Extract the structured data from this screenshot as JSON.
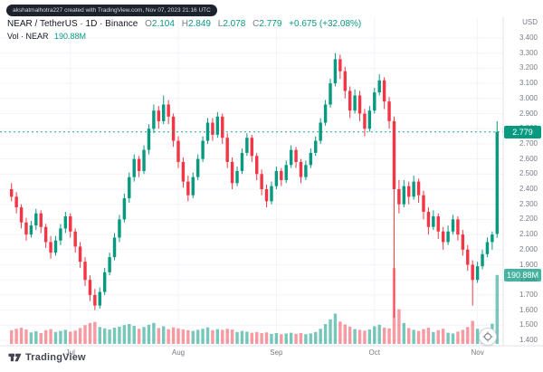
{
  "attribution": "akshatmalhotra227 created with TradingView.com, Nov 07, 2023 21:16 UTC",
  "header": {
    "title": "NEAR / TetherUS · 1D · Binance",
    "ohlc": {
      "o": {
        "label": "O",
        "value": "2.104"
      },
      "h": {
        "label": "H",
        "value": "2.849"
      },
      "l": {
        "label": "L",
        "value": "2.078"
      },
      "c": {
        "label": "C",
        "value": "2.779"
      },
      "change": "+0.675 (+32.08%)"
    },
    "volume_label": "Vol · NEAR",
    "volume_value": "190.88M"
  },
  "price_axis": {
    "currency": "USD",
    "labels": [
      "3.400",
      "3.300",
      "3.200",
      "3.100",
      "3.000",
      "2.900",
      "2.800",
      "2.700",
      "2.600",
      "2.500",
      "2.400",
      "2.300",
      "2.200",
      "2.100",
      "2.000",
      "1.900",
      "1.800",
      "1.700",
      "1.600",
      "1.500",
      "1.400"
    ]
  },
  "time_axis": {
    "labels": [
      {
        "text": "Jul",
        "candle_index": 12
      },
      {
        "text": "Aug",
        "candle_index": 34
      },
      {
        "text": "Sep",
        "candle_index": 54
      },
      {
        "text": "Oct",
        "candle_index": 74
      },
      {
        "text": "Nov",
        "candle_index": 95
      }
    ]
  },
  "badges": {
    "last_price": "2.779",
    "volume": "190.88M"
  },
  "footer": {
    "logo_text": "TradingView"
  },
  "colors": {
    "up": "#089981",
    "down": "#f23645",
    "volume_up": "rgba(8,153,129,0.55)",
    "volume_down": "rgba(242,54,69,0.5)",
    "grid": "#f0f3fa",
    "axis_border": "#e0e3eb",
    "axis_text": "#787b86",
    "price_badge_bg": "#089981",
    "volume_badge_bg": "rgba(8,153,129,0.75)"
  },
  "chart_data": {
    "type": "candlestick",
    "title": "NEAR / TetherUS 1D Binance",
    "symbol": "NEAR/USDT",
    "timeframe": "1D",
    "x_range": "Jul 2023 - Nov 07 2023",
    "ylim": [
      1.4,
      3.45
    ],
    "y_ticks": [
      3.4,
      3.3,
      3.2,
      3.1,
      3.0,
      2.9,
      2.8,
      2.7,
      2.6,
      2.5,
      2.4,
      2.3,
      2.2,
      2.1,
      2.0,
      1.9,
      1.8,
      1.7,
      1.6,
      1.5,
      1.4
    ],
    "last_price": 2.779,
    "last_volume_m": 190.88,
    "grid": true,
    "legend_position": "top-left",
    "series_note": "candles are [open, high, low, close, volume_millions]",
    "candles": [
      [
        2.4,
        2.44,
        2.32,
        2.35,
        38
      ],
      [
        2.35,
        2.38,
        2.24,
        2.28,
        42
      ],
      [
        2.28,
        2.3,
        2.14,
        2.18,
        45
      ],
      [
        2.18,
        2.21,
        2.06,
        2.1,
        40
      ],
      [
        2.1,
        2.19,
        2.08,
        2.16,
        32
      ],
      [
        2.16,
        2.27,
        2.13,
        2.24,
        35
      ],
      [
        2.24,
        2.26,
        2.11,
        2.15,
        30
      ],
      [
        2.15,
        2.17,
        2.01,
        2.05,
        38
      ],
      [
        2.05,
        2.09,
        1.94,
        1.98,
        41
      ],
      [
        1.98,
        2.09,
        1.96,
        2.06,
        33
      ],
      [
        2.06,
        2.17,
        2.03,
        2.14,
        36
      ],
      [
        2.14,
        2.25,
        2.11,
        2.22,
        39
      ],
      [
        2.22,
        2.24,
        2.08,
        2.12,
        34
      ],
      [
        2.12,
        2.14,
        1.98,
        2.02,
        37
      ],
      [
        2.02,
        2.05,
        1.88,
        1.92,
        44
      ],
      [
        1.92,
        1.95,
        1.76,
        1.8,
        52
      ],
      [
        1.8,
        1.83,
        1.66,
        1.7,
        58
      ],
      [
        1.7,
        1.74,
        1.6,
        1.63,
        61
      ],
      [
        1.63,
        1.75,
        1.61,
        1.72,
        47
      ],
      [
        1.72,
        1.88,
        1.7,
        1.85,
        43
      ],
      [
        1.85,
        1.98,
        1.83,
        1.95,
        40
      ],
      [
        1.95,
        2.11,
        1.93,
        2.08,
        45
      ],
      [
        2.08,
        2.23,
        2.05,
        2.2,
        48
      ],
      [
        2.2,
        2.37,
        2.18,
        2.34,
        52
      ],
      [
        2.34,
        2.51,
        2.31,
        2.48,
        55
      ],
      [
        2.48,
        2.63,
        2.45,
        2.6,
        50
      ],
      [
        2.6,
        2.62,
        2.48,
        2.52,
        42
      ],
      [
        2.52,
        2.69,
        2.5,
        2.66,
        47
      ],
      [
        2.66,
        2.83,
        2.63,
        2.8,
        53
      ],
      [
        2.8,
        2.96,
        2.77,
        2.92,
        58
      ],
      [
        2.92,
        2.95,
        2.8,
        2.85,
        44
      ],
      [
        2.85,
        3.02,
        2.83,
        2.96,
        49
      ],
      [
        2.96,
        2.99,
        2.83,
        2.88,
        41
      ],
      [
        2.88,
        2.9,
        2.68,
        2.72,
        46
      ],
      [
        2.72,
        2.75,
        2.54,
        2.58,
        43
      ],
      [
        2.58,
        2.61,
        2.41,
        2.45,
        40
      ],
      [
        2.45,
        2.49,
        2.32,
        2.36,
        38
      ],
      [
        2.36,
        2.51,
        2.34,
        2.48,
        36
      ],
      [
        2.48,
        2.63,
        2.46,
        2.6,
        39
      ],
      [
        2.6,
        2.75,
        2.58,
        2.72,
        42
      ],
      [
        2.72,
        2.87,
        2.7,
        2.84,
        46
      ],
      [
        2.84,
        2.87,
        2.72,
        2.76,
        38
      ],
      [
        2.76,
        2.91,
        2.74,
        2.88,
        41
      ],
      [
        2.88,
        2.9,
        2.7,
        2.74,
        39
      ],
      [
        2.74,
        2.77,
        2.54,
        2.58,
        42
      ],
      [
        2.58,
        2.61,
        2.4,
        2.44,
        40
      ],
      [
        2.44,
        2.55,
        2.42,
        2.52,
        33
      ],
      [
        2.52,
        2.67,
        2.5,
        2.64,
        36
      ],
      [
        2.64,
        2.77,
        2.62,
        2.74,
        34
      ],
      [
        2.74,
        2.76,
        2.58,
        2.62,
        31
      ],
      [
        2.62,
        2.64,
        2.46,
        2.5,
        33
      ],
      [
        2.5,
        2.53,
        2.36,
        2.4,
        30
      ],
      [
        2.4,
        2.43,
        2.28,
        2.32,
        32
      ],
      [
        2.32,
        2.45,
        2.3,
        2.42,
        28
      ],
      [
        2.42,
        2.55,
        2.4,
        2.52,
        30
      ],
      [
        2.52,
        2.54,
        2.42,
        2.46,
        27
      ],
      [
        2.46,
        2.59,
        2.44,
        2.56,
        29
      ],
      [
        2.56,
        2.69,
        2.54,
        2.66,
        31
      ],
      [
        2.66,
        2.68,
        2.54,
        2.58,
        28
      ],
      [
        2.58,
        2.6,
        2.44,
        2.48,
        30
      ],
      [
        2.48,
        2.59,
        2.46,
        2.56,
        27
      ],
      [
        2.56,
        2.67,
        2.54,
        2.64,
        29
      ],
      [
        2.64,
        2.75,
        2.62,
        2.72,
        33
      ],
      [
        2.72,
        2.87,
        2.7,
        2.84,
        42
      ],
      [
        2.84,
        2.99,
        2.82,
        2.96,
        55
      ],
      [
        2.96,
        3.13,
        2.94,
        3.1,
        68
      ],
      [
        3.1,
        3.3,
        3.08,
        3.26,
        84
      ],
      [
        3.26,
        3.29,
        3.13,
        3.18,
        62
      ],
      [
        3.18,
        3.21,
        3.0,
        3.05,
        54
      ],
      [
        3.05,
        3.08,
        2.87,
        2.92,
        48
      ],
      [
        2.92,
        3.06,
        2.9,
        3.02,
        41
      ],
      [
        3.02,
        3.05,
        2.85,
        2.9,
        39
      ],
      [
        2.9,
        2.93,
        2.75,
        2.8,
        37
      ],
      [
        2.8,
        2.95,
        2.78,
        2.92,
        40
      ],
      [
        2.92,
        3.07,
        2.9,
        3.04,
        49
      ],
      [
        3.04,
        3.16,
        3.02,
        3.12,
        53
      ],
      [
        3.12,
        3.14,
        2.93,
        2.98,
        45
      ],
      [
        2.98,
        3.01,
        2.8,
        2.85,
        43
      ],
      [
        2.85,
        2.88,
        1.55,
        2.4,
        210
      ],
      [
        2.4,
        2.46,
        2.24,
        2.3,
        96
      ],
      [
        2.3,
        2.46,
        2.28,
        2.42,
        58
      ],
      [
        2.42,
        2.45,
        2.3,
        2.35,
        44
      ],
      [
        2.35,
        2.49,
        2.33,
        2.45,
        39
      ],
      [
        2.45,
        2.47,
        2.31,
        2.36,
        36
      ],
      [
        2.36,
        2.39,
        2.2,
        2.25,
        41
      ],
      [
        2.25,
        2.28,
        2.1,
        2.15,
        45
      ],
      [
        2.15,
        2.26,
        2.13,
        2.22,
        33
      ],
      [
        2.22,
        2.24,
        2.07,
        2.12,
        38
      ],
      [
        2.12,
        2.15,
        2.0,
        2.05,
        42
      ],
      [
        2.05,
        2.16,
        2.03,
        2.12,
        31
      ],
      [
        2.12,
        2.23,
        2.1,
        2.2,
        29
      ],
      [
        2.2,
        2.22,
        2.06,
        2.1,
        34
      ],
      [
        2.1,
        2.13,
        1.96,
        2.0,
        39
      ],
      [
        2.0,
        2.03,
        1.86,
        1.9,
        47
      ],
      [
        1.9,
        1.93,
        1.63,
        1.8,
        64
      ],
      [
        1.8,
        1.92,
        1.78,
        1.89,
        42
      ],
      [
        1.89,
        2.0,
        1.87,
        1.97,
        38
      ],
      [
        1.97,
        2.08,
        1.95,
        2.05,
        35
      ],
      [
        2.05,
        2.12,
        2.0,
        2.1,
        56
      ],
      [
        2.104,
        2.849,
        2.078,
        2.779,
        191
      ]
    ]
  }
}
